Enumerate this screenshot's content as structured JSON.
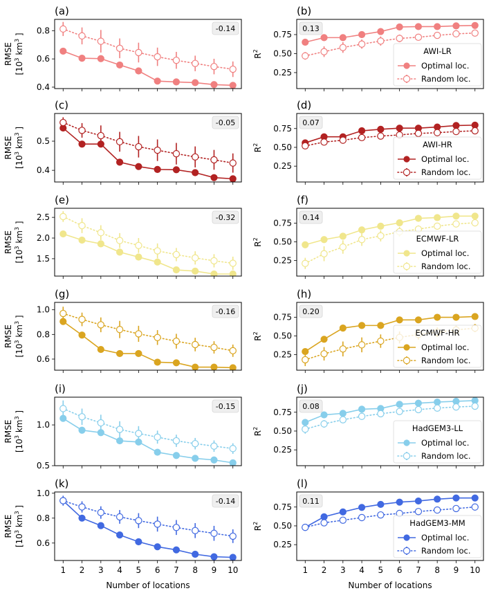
{
  "chart_data": [
    {
      "type": "line",
      "panel": "(a)",
      "metric": "RMSE",
      "model": "AWI-LR",
      "color": "#f08080",
      "ylabel_line1": "RMSE",
      "ylabel_line2": "[10^3 km^3 ]",
      "ylim": [
        0.39,
        0.88
      ],
      "yticks": [
        0.4,
        0.6,
        0.8
      ],
      "ytick_labels": [
        "0.4",
        "0.6",
        "0.8"
      ],
      "x": [
        1,
        2,
        3,
        4,
        5,
        6,
        7,
        8,
        9,
        10
      ],
      "series": [
        {
          "name": "Optimal loc.",
          "values": [
            0.655,
            0.605,
            0.602,
            0.557,
            0.515,
            0.443,
            0.437,
            0.432,
            0.418,
            0.413
          ]
        },
        {
          "name": "Random loc.",
          "values": [
            0.812,
            0.763,
            0.725,
            0.675,
            0.645,
            0.615,
            0.59,
            0.568,
            0.546,
            0.527
          ],
          "err": [
            0.05,
            0.06,
            0.08,
            0.07,
            0.07,
            0.065,
            0.06,
            0.055,
            0.055,
            0.055
          ]
        }
      ],
      "annotation": "-0.14",
      "annotation_position": "top-right"
    },
    {
      "type": "line",
      "panel": "(b)",
      "metric": "R2",
      "model": "AWI-LR",
      "color": "#f08080",
      "ylabel": "R²",
      "ylim": [
        0.04,
        0.95
      ],
      "yticks": [
        0.25,
        0.5,
        0.75
      ],
      "ytick_labels": [
        "0.25",
        "0.50",
        "0.75"
      ],
      "x": [
        1,
        2,
        3,
        4,
        5,
        6,
        7,
        8,
        9,
        10
      ],
      "series": [
        {
          "name": "Optimal loc.",
          "values": [
            0.65,
            0.71,
            0.71,
            0.75,
            0.79,
            0.85,
            0.855,
            0.855,
            0.865,
            0.87
          ]
        },
        {
          "name": "Random loc.",
          "values": [
            0.47,
            0.525,
            0.58,
            0.625,
            0.665,
            0.7,
            0.715,
            0.74,
            0.76,
            0.77
          ],
          "err": [
            0.05,
            0.07,
            0.07,
            0.06,
            0.06,
            0.05,
            0.04,
            0.035,
            0.03,
            0.03
          ]
        }
      ],
      "legend_title": "AWI-LR",
      "legend_position": "lower-right",
      "annotation": "0.13",
      "annotation_position": "top-left"
    },
    {
      "type": "line",
      "panel": "(c)",
      "metric": "RMSE",
      "model": "AWI-HR",
      "color": "#b22222",
      "ylabel_line1": "RMSE",
      "ylabel_line2": "[10^3 km^3 ]",
      "ylim": [
        0.36,
        0.595
      ],
      "yticks": [
        0.4,
        0.5
      ],
      "ytick_labels": [
        "0.4",
        "0.5"
      ],
      "x": [
        1,
        2,
        3,
        4,
        5,
        6,
        7,
        8,
        9,
        10
      ],
      "series": [
        {
          "name": "Optimal loc.",
          "values": [
            0.545,
            0.49,
            0.49,
            0.428,
            0.413,
            0.403,
            0.402,
            0.392,
            0.375,
            0.371
          ]
        },
        {
          "name": "Random loc.",
          "values": [
            0.564,
            0.537,
            0.519,
            0.498,
            0.481,
            0.469,
            0.457,
            0.446,
            0.436,
            0.425
          ],
          "err": [
            0.018,
            0.025,
            0.035,
            0.034,
            0.037,
            0.037,
            0.037,
            0.036,
            0.034,
            0.033
          ]
        }
      ],
      "annotation": "-0.05",
      "annotation_position": "top-right"
    },
    {
      "type": "line",
      "panel": "(d)",
      "metric": "R2",
      "model": "AWI-HR",
      "color": "#b22222",
      "ylabel": "R²",
      "ylim": [
        0.04,
        0.95
      ],
      "yticks": [
        0.25,
        0.5,
        0.75
      ],
      "ytick_labels": [
        "0.25",
        "0.50",
        "0.75"
      ],
      "x": [
        1,
        2,
        3,
        4,
        5,
        6,
        7,
        8,
        9,
        10
      ],
      "series": [
        {
          "name": "Optimal loc.",
          "values": [
            0.56,
            0.64,
            0.64,
            0.72,
            0.74,
            0.755,
            0.755,
            0.77,
            0.79,
            0.795
          ]
        },
        {
          "name": "Random loc.",
          "values": [
            0.52,
            0.57,
            0.595,
            0.63,
            0.65,
            0.665,
            0.685,
            0.695,
            0.71,
            0.72
          ],
          "err": [
            0.02,
            0.025,
            0.025,
            0.03,
            0.03,
            0.03,
            0.025,
            0.025,
            0.02,
            0.02
          ]
        }
      ],
      "legend_title": "AWI-HR",
      "legend_position": "lower-right",
      "annotation": "0.07",
      "annotation_position": "top-left"
    },
    {
      "type": "line",
      "panel": "(e)",
      "metric": "RMSE",
      "model": "ECMWF-LR",
      "color": "#f0e68c",
      "ylabel_line1": "RMSE",
      "ylabel_line2": "[10^3 km^3 ]",
      "ylim": [
        1.08,
        2.72
      ],
      "yticks": [
        1.5,
        2.0,
        2.5
      ],
      "ytick_labels": [
        "1.5",
        "2.0",
        "2.5"
      ],
      "x": [
        1,
        2,
        3,
        4,
        5,
        6,
        7,
        8,
        9,
        10
      ],
      "series": [
        {
          "name": "Optimal loc.",
          "values": [
            2.1,
            1.95,
            1.86,
            1.66,
            1.54,
            1.42,
            1.23,
            1.2,
            1.13,
            1.13
          ]
        },
        {
          "name": "Random loc.",
          "values": [
            2.52,
            2.3,
            2.13,
            1.94,
            1.82,
            1.69,
            1.6,
            1.52,
            1.45,
            1.39
          ],
          "err": [
            0.13,
            0.18,
            0.18,
            0.18,
            0.18,
            0.18,
            0.16,
            0.16,
            0.16,
            0.16
          ]
        }
      ],
      "annotation": "-0.32",
      "annotation_position": "top-right"
    },
    {
      "type": "line",
      "panel": "(f)",
      "metric": "R2",
      "model": "ECMWF-LR",
      "color": "#f0e68c",
      "ylabel": "R²",
      "ylim": [
        0.04,
        0.95
      ],
      "yticks": [
        0.25,
        0.5,
        0.75
      ],
      "ytick_labels": [
        "0.25",
        "0.50",
        "0.75"
      ],
      "x": [
        1,
        2,
        3,
        4,
        5,
        6,
        7,
        8,
        9,
        10
      ],
      "series": [
        {
          "name": "Optimal loc.",
          "values": [
            0.46,
            0.53,
            0.575,
            0.66,
            0.71,
            0.755,
            0.815,
            0.825,
            0.845,
            0.845
          ]
        },
        {
          "name": "Random loc.",
          "values": [
            0.21,
            0.34,
            0.43,
            0.53,
            0.58,
            0.635,
            0.67,
            0.71,
            0.74,
            0.755
          ],
          "err": [
            0.075,
            0.1,
            0.09,
            0.085,
            0.075,
            0.065,
            0.05,
            0.045,
            0.04,
            0.035
          ]
        }
      ],
      "legend_title": "ECMWF-LR",
      "legend_position": "lower-right",
      "annotation": "0.14",
      "annotation_position": "top-left"
    },
    {
      "type": "line",
      "panel": "(g)",
      "metric": "RMSE",
      "model": "ECMWF-HR",
      "color": "#daa520",
      "ylabel_line1": "RMSE",
      "ylabel_line2": "[10^3 km^3 ]",
      "ylim": [
        0.51,
        1.06
      ],
      "yticks": [
        0.6,
        0.8,
        1.0
      ],
      "ytick_labels": [
        "0.6",
        "0.8",
        "1.0"
      ],
      "x": [
        1,
        2,
        3,
        4,
        5,
        6,
        7,
        8,
        9,
        10
      ],
      "series": [
        {
          "name": "Optimal loc.",
          "values": [
            0.905,
            0.795,
            0.678,
            0.645,
            0.645,
            0.575,
            0.57,
            0.535,
            0.535,
            0.53
          ]
        },
        {
          "name": "Random loc.",
          "values": [
            0.97,
            0.922,
            0.878,
            0.84,
            0.805,
            0.775,
            0.745,
            0.718,
            0.695,
            0.668
          ],
          "err": [
            0.055,
            0.055,
            0.06,
            0.07,
            0.065,
            0.06,
            0.06,
            0.055,
            0.05,
            0.05
          ]
        }
      ],
      "annotation": "-0.16",
      "annotation_position": "top-right"
    },
    {
      "type": "line",
      "panel": "(h)",
      "metric": "R2",
      "model": "ECMWF-HR",
      "color": "#daa520",
      "ylabel": "R²",
      "ylim": [
        0.04,
        0.95
      ],
      "yticks": [
        0.25,
        0.5,
        0.75
      ],
      "ytick_labels": [
        "0.25",
        "0.50",
        "0.75"
      ],
      "x": [
        1,
        2,
        3,
        4,
        5,
        6,
        7,
        8,
        9,
        10
      ],
      "series": [
        {
          "name": "Optimal loc.",
          "values": [
            0.29,
            0.455,
            0.605,
            0.64,
            0.64,
            0.715,
            0.715,
            0.75,
            0.75,
            0.76
          ]
        },
        {
          "name": "Random loc.",
          "values": [
            0.18,
            0.26,
            0.325,
            0.38,
            0.43,
            0.48,
            0.52,
            0.55,
            0.58,
            0.605
          ],
          "err": [
            0.085,
            0.09,
            0.1,
            0.1,
            0.09,
            0.08,
            0.07,
            0.065,
            0.06,
            0.055
          ]
        }
      ],
      "legend_title": "ECMWF-HR",
      "legend_position": "lower-right",
      "annotation": "0.20",
      "annotation_position": "top-left"
    },
    {
      "type": "line",
      "panel": "(i)",
      "metric": "RMSE",
      "model": "HadGEM3-LL",
      "color": "#87ceeb",
      "ylabel_line1": "RMSE",
      "ylabel_line2": "[10^3 km^3 ]",
      "ylim": [
        0.5,
        1.34
      ],
      "yticks": [
        0.5,
        1.0
      ],
      "ytick_labels": [
        "0.5",
        "1.0"
      ],
      "x": [
        1,
        2,
        3,
        4,
        5,
        6,
        7,
        8,
        9,
        10
      ],
      "series": [
        {
          "name": "Optimal loc.",
          "values": [
            1.08,
            0.935,
            0.905,
            0.805,
            0.79,
            0.665,
            0.625,
            0.59,
            0.57,
            0.535
          ]
        },
        {
          "name": "Random loc.",
          "values": [
            1.2,
            1.1,
            1.025,
            0.945,
            0.895,
            0.85,
            0.805,
            0.77,
            0.74,
            0.71
          ],
          "err": [
            0.1,
            0.1,
            0.1,
            0.1,
            0.09,
            0.08,
            0.075,
            0.07,
            0.07,
            0.065
          ]
        }
      ],
      "annotation": "-0.15",
      "annotation_position": "top-right"
    },
    {
      "type": "line",
      "panel": "(j)",
      "metric": "R2",
      "model": "HadGEM3-LL",
      "color": "#87ceeb",
      "ylabel": "R²",
      "ylim": [
        0.04,
        0.95
      ],
      "yticks": [
        0.25,
        0.5,
        0.75
      ],
      "ytick_labels": [
        "0.25",
        "0.50",
        "0.75"
      ],
      "x": [
        1,
        2,
        3,
        4,
        5,
        6,
        7,
        8,
        9,
        10
      ],
      "series": [
        {
          "name": "Optimal loc.",
          "values": [
            0.615,
            0.715,
            0.735,
            0.79,
            0.8,
            0.855,
            0.87,
            0.885,
            0.895,
            0.905
          ]
        },
        {
          "name": "Random loc.",
          "values": [
            0.525,
            0.595,
            0.65,
            0.695,
            0.73,
            0.76,
            0.785,
            0.805,
            0.82,
            0.83
          ],
          "err": [
            0.06,
            0.05,
            0.045,
            0.04,
            0.035,
            0.03,
            0.025,
            0.02,
            0.02,
            0.02
          ]
        }
      ],
      "legend_title": "HadGEM3-LL",
      "legend_position": "lower-right",
      "annotation": "0.08",
      "annotation_position": "top-left"
    },
    {
      "type": "line",
      "panel": "(k)",
      "metric": "RMSE",
      "model": "HadGEM3-MM",
      "color": "#4169e1",
      "ylabel_line1": "RMSE",
      "ylabel_line2": "[10^3 km^3 ]",
      "ylim": [
        0.46,
        1.01
      ],
      "yticks": [
        0.6,
        0.8,
        1.0
      ],
      "ytick_labels": [
        "0.6",
        "0.8",
        "1.0"
      ],
      "x": [
        1,
        2,
        3,
        4,
        5,
        6,
        7,
        8,
        9,
        10
      ],
      "series": [
        {
          "name": "Optimal loc.",
          "values": [
            0.94,
            0.8,
            0.74,
            0.665,
            0.61,
            0.57,
            0.545,
            0.51,
            0.49,
            0.485
          ]
        },
        {
          "name": "Random loc.",
          "values": [
            0.94,
            0.89,
            0.845,
            0.81,
            0.78,
            0.752,
            0.725,
            0.7,
            0.678,
            0.655
          ],
          "err": [
            0.04,
            0.045,
            0.05,
            0.055,
            0.06,
            0.06,
            0.06,
            0.06,
            0.06,
            0.055
          ]
        }
      ],
      "annotation": "-0.14",
      "annotation_position": "top-right"
    },
    {
      "type": "line",
      "panel": "(l)",
      "metric": "R2",
      "model": "HadGEM3-MM",
      "color": "#4169e1",
      "ylabel": "R²",
      "ylim": [
        0.04,
        0.95
      ],
      "yticks": [
        0.25,
        0.5,
        0.75
      ],
      "ytick_labels": [
        "0.25",
        "0.50",
        "0.75"
      ],
      "x": [
        1,
        2,
        3,
        4,
        5,
        6,
        7,
        8,
        9,
        10
      ],
      "series": [
        {
          "name": "Optimal loc.",
          "values": [
            0.48,
            0.62,
            0.685,
            0.745,
            0.785,
            0.815,
            0.83,
            0.855,
            0.87,
            0.87
          ]
        },
        {
          "name": "Random loc.",
          "values": [
            0.48,
            0.54,
            0.575,
            0.61,
            0.645,
            0.665,
            0.69,
            0.71,
            0.73,
            0.75
          ],
          "err": [
            0.02,
            0.025,
            0.03,
            0.035,
            0.035,
            0.035,
            0.03,
            0.025,
            0.02,
            0.02
          ]
        }
      ],
      "legend_title": "HadGEM3-MM",
      "legend_position": "lower-right",
      "annotation": "0.11",
      "annotation_position": "top-left"
    }
  ],
  "xlabel": "Number of locations",
  "xtick_labels": [
    "1",
    "2",
    "3",
    "4",
    "5",
    "6",
    "7",
    "8",
    "9",
    "10"
  ],
  "legend_labels": {
    "optimal": "Optimal loc.",
    "random": "Random loc."
  }
}
